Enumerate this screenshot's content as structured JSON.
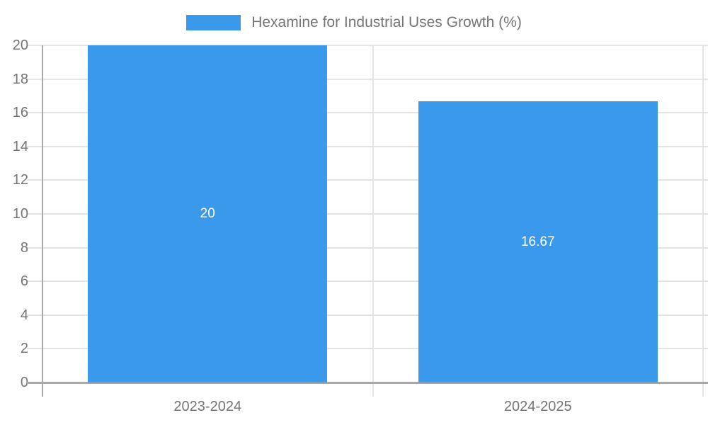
{
  "chart_data": {
    "type": "bar",
    "title": "Hexamine for Industrial Uses Growth (%)",
    "legend": {
      "position": "top-center",
      "entries": [
        "Hexamine for Industrial Uses Growth (%)"
      ]
    },
    "categories": [
      "2023-2024",
      "2024-2025"
    ],
    "values": [
      20,
      16.67
    ],
    "value_labels": [
      "20",
      "16.67"
    ],
    "y_ticks": [
      "0",
      "2",
      "4",
      "6",
      "8",
      "10",
      "12",
      "14",
      "16",
      "18",
      "20"
    ],
    "y_tick_values": [
      0,
      2,
      4,
      6,
      8,
      10,
      12,
      14,
      16,
      18,
      20
    ],
    "ylim": [
      0,
      20
    ],
    "xlabel": "",
    "ylabel": "",
    "grid": true,
    "colors": {
      "bar": "#3b99eb",
      "axis_line": "#a8a8a8",
      "grid_line": "#e3e3e3",
      "tick_text": "#757575",
      "bar_label_text": "#ffffff",
      "background": "#ffffff"
    }
  }
}
